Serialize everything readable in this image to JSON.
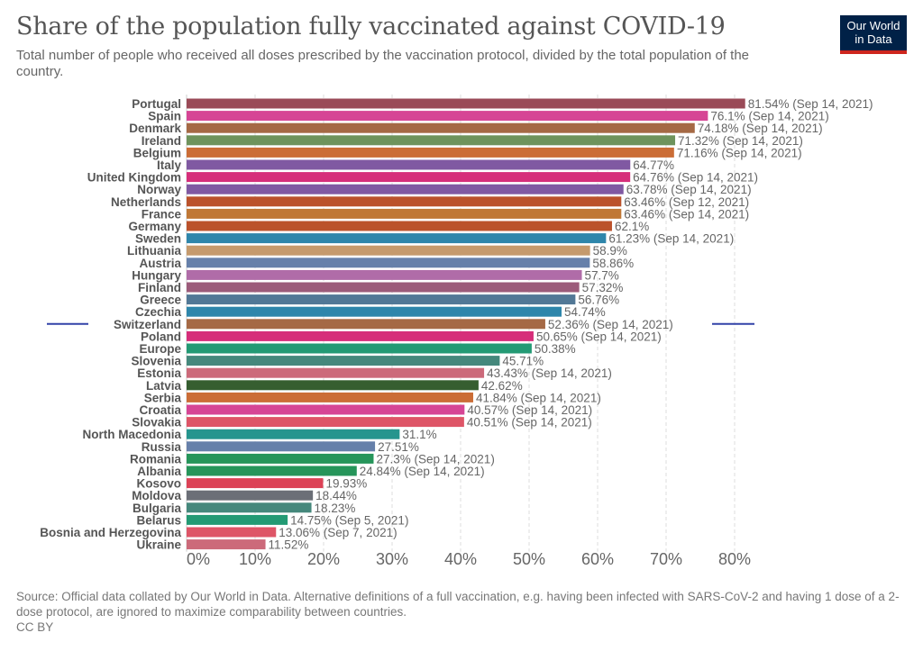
{
  "title": "Share of the population fully vaccinated against COVID-19",
  "subtitle": "Total number of people who received all doses prescribed by the vaccination protocol, divided by the total population of the country.",
  "logo": {
    "line1": "Our World",
    "line2": "in Data"
  },
  "footer": {
    "source": "Source: Official data collated by Our World in Data. Alternative definitions of a full vaccination, e.g. having been infected with SARS-CoV-2 and having 1 dose of a 2-dose protocol, are ignored to maximize comparability between countries.",
    "license": "CC BY"
  },
  "chart_data": {
    "type": "bar",
    "orientation": "horizontal",
    "xlim": [
      0,
      85
    ],
    "ticks": [
      0,
      10,
      20,
      30,
      40,
      50,
      60,
      70,
      80
    ],
    "tick_labels": [
      "0%",
      "10%",
      "20%",
      "30%",
      "40%",
      "50%",
      "60%",
      "70%",
      "80%"
    ],
    "grid": true,
    "highlighted": "Switzerland",
    "highlight_color": "#3242a8",
    "rows": [
      {
        "name": "Portugal",
        "value": 81.54,
        "label": "81.54% (Sep 14, 2021)",
        "color": "#9a4a57"
      },
      {
        "name": "Spain",
        "value": 76.1,
        "label": "76.1% (Sep 14, 2021)",
        "color": "#d64595"
      },
      {
        "name": "Denmark",
        "value": 74.18,
        "label": "74.18% (Sep 14, 2021)",
        "color": "#a56945"
      },
      {
        "name": "Ireland",
        "value": 71.32,
        "label": "71.32% (Sep 14, 2021)",
        "color": "#6e935c"
      },
      {
        "name": "Belgium",
        "value": 71.16,
        "label": "71.16% (Sep 14, 2021)",
        "color": "#cb6d36"
      },
      {
        "name": "Italy",
        "value": 64.77,
        "label": "64.77%",
        "color": "#8059a2"
      },
      {
        "name": "United Kingdom",
        "value": 64.76,
        "label": "64.76% (Sep 14, 2021)",
        "color": "#d62e7a"
      },
      {
        "name": "Norway",
        "value": 63.78,
        "label": "63.78% (Sep 14, 2021)",
        "color": "#8059a2"
      },
      {
        "name": "Netherlands",
        "value": 63.46,
        "label": "63.46% (Sep 12, 2021)",
        "color": "#bb522b"
      },
      {
        "name": "France",
        "value": 63.46,
        "label": "63.46% (Sep 14, 2021)",
        "color": "#c07836"
      },
      {
        "name": "Germany",
        "value": 62.1,
        "label": "62.1%",
        "color": "#bb522b"
      },
      {
        "name": "Sweden",
        "value": 61.23,
        "label": "61.23% (Sep 14, 2021)",
        "color": "#2e86ab"
      },
      {
        "name": "Lithuania",
        "value": 58.9,
        "label": "58.9%",
        "color": "#c59a6d"
      },
      {
        "name": "Austria",
        "value": 58.86,
        "label": "58.86%",
        "color": "#6680aa"
      },
      {
        "name": "Hungary",
        "value": 57.7,
        "label": "57.7%",
        "color": "#b06ca8"
      },
      {
        "name": "Finland",
        "value": 57.32,
        "label": "57.32%",
        "color": "#9c5b7a"
      },
      {
        "name": "Greece",
        "value": 56.76,
        "label": "56.76%",
        "color": "#527896"
      },
      {
        "name": "Czechia",
        "value": 54.74,
        "label": "54.74%",
        "color": "#2e86ab"
      },
      {
        "name": "Switzerland",
        "value": 52.36,
        "label": "52.36% (Sep 14, 2021)",
        "color": "#a56945"
      },
      {
        "name": "Poland",
        "value": 50.65,
        "label": "50.65% (Sep 14, 2021)",
        "color": "#d62e7a"
      },
      {
        "name": "Europe",
        "value": 50.38,
        "label": "50.38%",
        "color": "#239a74"
      },
      {
        "name": "Slovenia",
        "value": 45.71,
        "label": "45.71%",
        "color": "#45887c"
      },
      {
        "name": "Estonia",
        "value": 43.43,
        "label": "43.43% (Sep 14, 2021)",
        "color": "#cc6a7a"
      },
      {
        "name": "Latvia",
        "value": 42.62,
        "label": "42.62%",
        "color": "#365e30"
      },
      {
        "name": "Serbia",
        "value": 41.84,
        "label": "41.84% (Sep 14, 2021)",
        "color": "#cb6d36"
      },
      {
        "name": "Croatia",
        "value": 40.57,
        "label": "40.57% (Sep 14, 2021)",
        "color": "#d64595"
      },
      {
        "name": "Slovakia",
        "value": 40.51,
        "label": "40.51% (Sep 14, 2021)",
        "color": "#de5567"
      },
      {
        "name": "North Macedonia",
        "value": 31.1,
        "label": "31.1%",
        "color": "#26958e"
      },
      {
        "name": "Russia",
        "value": 27.51,
        "label": "27.51%",
        "color": "#6680aa"
      },
      {
        "name": "Romania",
        "value": 27.3,
        "label": "27.3% (Sep 14, 2021)",
        "color": "#26955a"
      },
      {
        "name": "Albania",
        "value": 24.84,
        "label": "24.84% (Sep 14, 2021)",
        "color": "#26955a"
      },
      {
        "name": "Kosovo",
        "value": 19.93,
        "label": "19.93%",
        "color": "#dc4256"
      },
      {
        "name": "Moldova",
        "value": 18.44,
        "label": "18.44%",
        "color": "#6b6f77"
      },
      {
        "name": "Bulgaria",
        "value": 18.23,
        "label": "18.23%",
        "color": "#45887c"
      },
      {
        "name": "Belarus",
        "value": 14.75,
        "label": "14.75% (Sep 5, 2021)",
        "color": "#239a74"
      },
      {
        "name": "Bosnia and Herzegovina",
        "value": 13.06,
        "label": "13.06% (Sep 7, 2021)",
        "color": "#de5567"
      },
      {
        "name": "Ukraine",
        "value": 11.52,
        "label": "11.52%",
        "color": "#cc6a7a"
      }
    ]
  }
}
